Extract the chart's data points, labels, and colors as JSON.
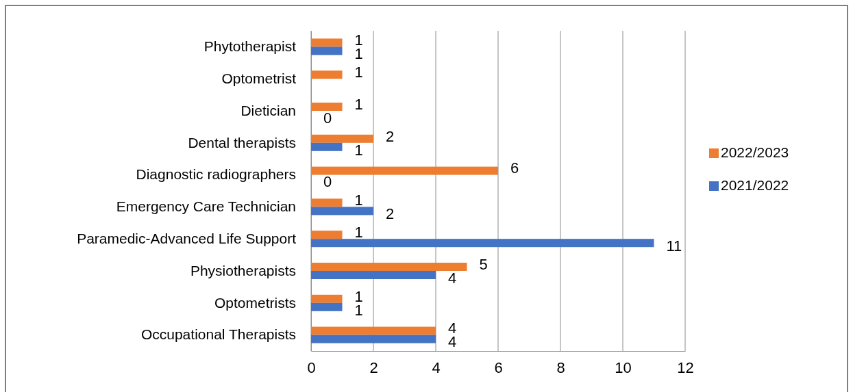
{
  "chart_data": {
    "type": "bar",
    "orientation": "horizontal",
    "categories": [
      "Phytotherapist",
      "Optometrist",
      "Dietician",
      "Dental therapists",
      "Diagnostic radiographers",
      "Emergency Care Technician",
      "Paramedic-Advanced Life Support",
      "Physiotherapists",
      "Optometrists",
      "Occupational Therapists"
    ],
    "series": [
      {
        "name": "2022/2023",
        "color": "#ed7d31",
        "values": [
          1,
          1,
          1,
          2,
          6,
          1,
          1,
          5,
          1,
          4
        ]
      },
      {
        "name": "2021/2022",
        "color": "#4472c4",
        "values": [
          1,
          null,
          0,
          1,
          0,
          2,
          11,
          4,
          1,
          4
        ]
      }
    ],
    "xlim": [
      0,
      12
    ],
    "xticks": [
      0,
      2,
      4,
      6,
      8,
      10,
      12
    ],
    "grid": "x",
    "legend": "right",
    "data_labels": true
  }
}
